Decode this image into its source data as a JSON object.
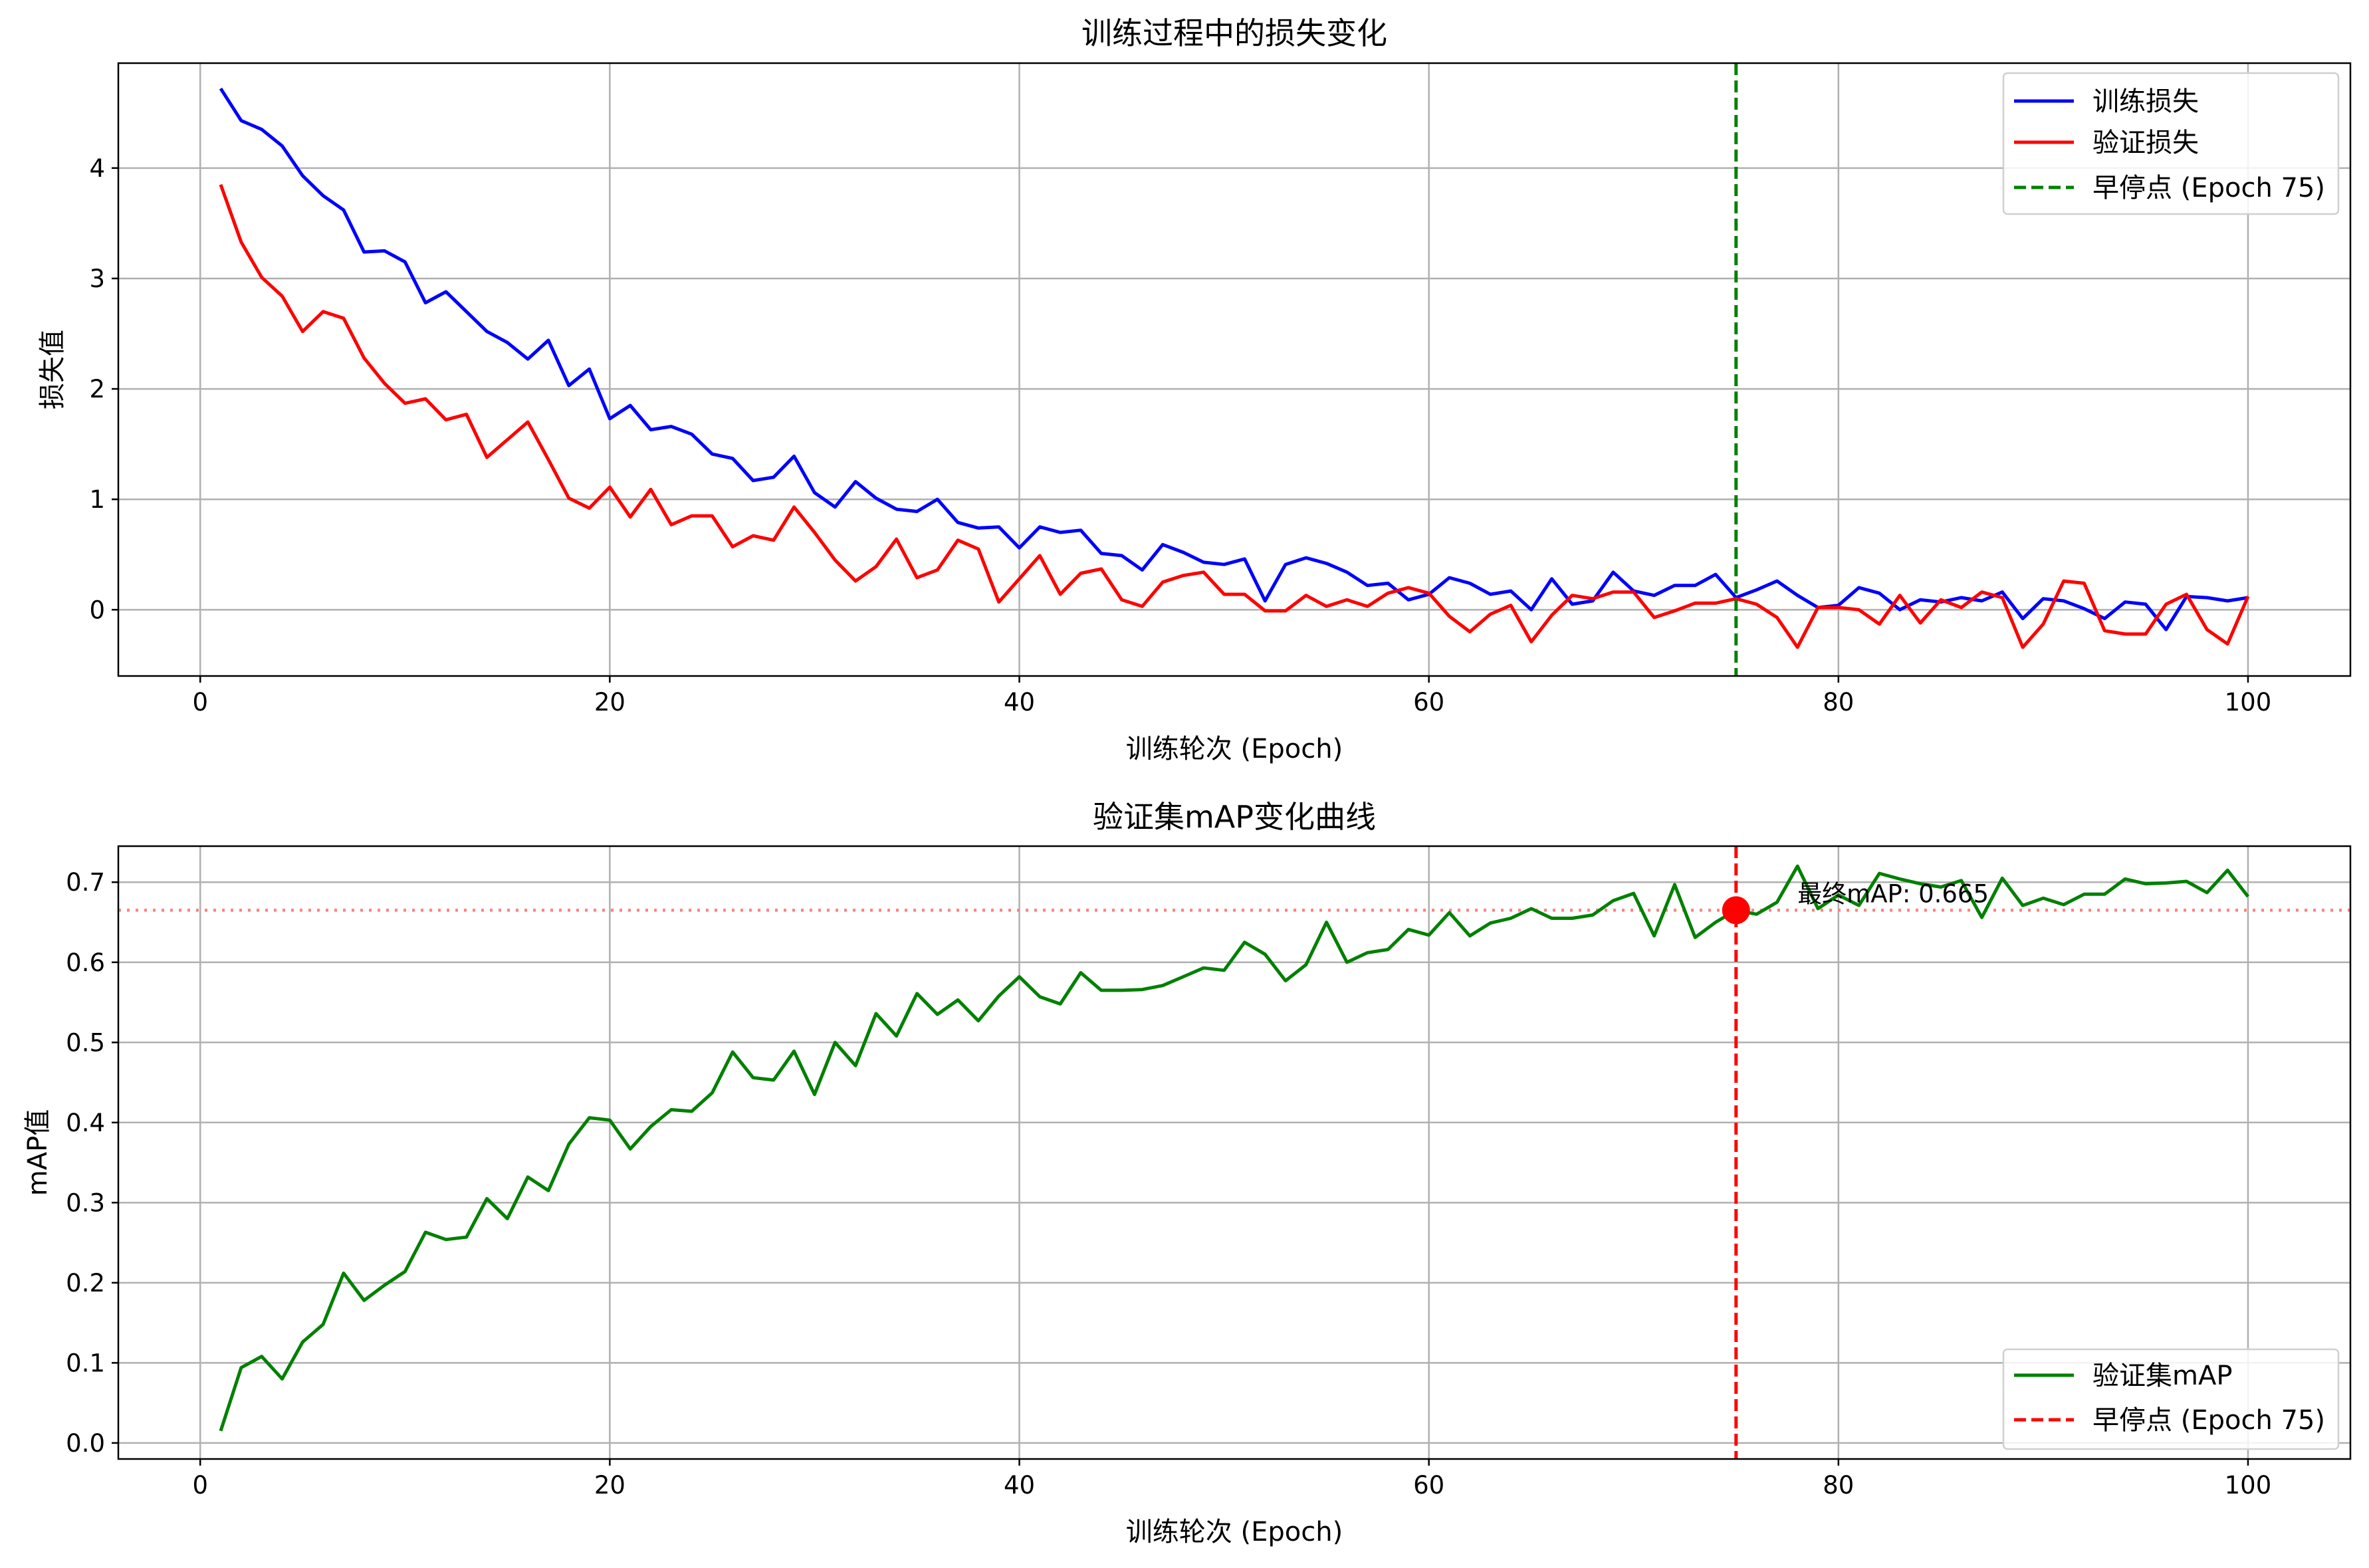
{
  "chart_data": [
    {
      "type": "line",
      "title": "训练过程中的损失变化",
      "xlabel": "训练轮次 (Epoch)",
      "ylabel": "损失值",
      "xlim": [
        -4,
        105
      ],
      "ylim": [
        -0.6,
        4.95
      ],
      "xticks": [
        0,
        20,
        40,
        60,
        80,
        100
      ],
      "yticks": [
        0,
        1,
        2,
        3,
        4
      ],
      "grid": true,
      "legend_position": "top-right",
      "x": [
        1,
        2,
        3,
        4,
        5,
        6,
        7,
        8,
        9,
        10,
        11,
        12,
        13,
        14,
        15,
        16,
        17,
        18,
        19,
        20,
        21,
        22,
        23,
        24,
        25,
        26,
        27,
        28,
        29,
        30,
        31,
        32,
        33,
        34,
        35,
        36,
        37,
        38,
        39,
        40,
        41,
        42,
        43,
        44,
        45,
        46,
        47,
        48,
        49,
        50,
        51,
        52,
        53,
        54,
        55,
        56,
        57,
        58,
        59,
        60,
        61,
        62,
        63,
        64,
        65,
        66,
        67,
        68,
        69,
        70,
        71,
        72,
        73,
        74,
        75,
        76,
        77,
        78,
        79,
        80,
        81,
        82,
        83,
        84,
        85,
        86,
        87,
        88,
        89,
        90,
        91,
        92,
        93,
        94,
        95,
        96,
        97,
        98,
        99,
        100
      ],
      "series": [
        {
          "name": "训练损失",
          "color": "#0000ff",
          "style": "solid",
          "values": [
            4.72,
            4.43,
            4.35,
            4.2,
            3.93,
            3.75,
            3.62,
            3.24,
            3.25,
            3.15,
            2.78,
            2.88,
            2.7,
            2.52,
            2.42,
            2.27,
            2.44,
            2.03,
            2.18,
            1.73,
            1.85,
            1.63,
            1.66,
            1.59,
            1.41,
            1.37,
            1.17,
            1.2,
            1.39,
            1.06,
            0.93,
            1.16,
            1.01,
            0.91,
            0.89,
            1.0,
            0.79,
            0.74,
            0.75,
            0.56,
            0.75,
            0.7,
            0.72,
            0.51,
            0.49,
            0.36,
            0.59,
            0.52,
            0.43,
            0.41,
            0.46,
            0.08,
            0.41,
            0.47,
            0.42,
            0.34,
            0.22,
            0.24,
            0.09,
            0.14,
            0.29,
            0.24,
            0.14,
            0.17,
            0.0,
            0.28,
            0.05,
            0.08,
            0.34,
            0.17,
            0.13,
            0.22,
            0.22,
            0.32,
            0.11,
            0.18,
            0.26,
            0.13,
            0.02,
            0.04,
            0.2,
            0.15,
            0.0,
            0.09,
            0.07,
            0.11,
            0.08,
            0.16,
            -0.08,
            0.1,
            0.08,
            0.01,
            -0.08,
            0.07,
            0.05,
            -0.18,
            0.12,
            0.11,
            0.08,
            0.11
          ]
        },
        {
          "name": "验证损失",
          "color": "#ff0000",
          "style": "solid",
          "values": [
            3.85,
            3.33,
            3.01,
            2.84,
            2.52,
            2.7,
            2.64,
            2.28,
            2.05,
            1.87,
            1.91,
            1.72,
            1.77,
            1.38,
            1.54,
            1.7,
            1.36,
            1.01,
            0.92,
            1.11,
            0.84,
            1.09,
            0.77,
            0.85,
            0.85,
            0.57,
            0.67,
            0.63,
            0.93,
            0.7,
            0.45,
            0.26,
            0.39,
            0.64,
            0.29,
            0.36,
            0.63,
            0.55,
            0.07,
            0.28,
            0.49,
            0.14,
            0.33,
            0.37,
            0.09,
            0.03,
            0.25,
            0.31,
            0.34,
            0.14,
            0.14,
            -0.01,
            -0.01,
            0.13,
            0.03,
            0.09,
            0.03,
            0.15,
            0.2,
            0.15,
            -0.06,
            -0.2,
            -0.04,
            0.04,
            -0.29,
            -0.05,
            0.13,
            0.1,
            0.16,
            0.16,
            -0.07,
            -0.01,
            0.06,
            0.06,
            0.1,
            0.05,
            -0.07,
            -0.34,
            0.02,
            0.02,
            0.0,
            -0.13,
            0.13,
            -0.12,
            0.09,
            0.02,
            0.16,
            0.11,
            -0.34,
            -0.13,
            0.26,
            0.24,
            -0.19,
            -0.22,
            -0.22,
            0.05,
            0.14,
            -0.18,
            -0.31,
            0.12
          ]
        }
      ],
      "vlines": [
        {
          "name": "早停点 (Epoch 75)",
          "x": 75,
          "color": "#008000",
          "style": "dashed"
        }
      ]
    },
    {
      "type": "line",
      "title": "验证集mAP变化曲线",
      "xlabel": "训练轮次 (Epoch)",
      "ylabel": "mAP值",
      "xlim": [
        -4,
        105
      ],
      "ylim": [
        -0.02,
        0.745
      ],
      "xticks": [
        0,
        20,
        40,
        60,
        80,
        100
      ],
      "yticks": [
        0.0,
        0.1,
        0.2,
        0.3,
        0.4,
        0.5,
        0.6,
        0.7
      ],
      "grid": true,
      "legend_position": "bottom-right",
      "x": [
        1,
        2,
        3,
        4,
        5,
        6,
        7,
        8,
        9,
        10,
        11,
        12,
        13,
        14,
        15,
        16,
        17,
        18,
        19,
        20,
        21,
        22,
        23,
        24,
        25,
        26,
        27,
        28,
        29,
        30,
        31,
        32,
        33,
        34,
        35,
        36,
        37,
        38,
        39,
        40,
        41,
        42,
        43,
        44,
        45,
        46,
        47,
        48,
        49,
        50,
        51,
        52,
        53,
        54,
        55,
        56,
        57,
        58,
        59,
        60,
        61,
        62,
        63,
        64,
        65,
        66,
        67,
        68,
        69,
        70,
        71,
        72,
        73,
        74,
        75,
        76,
        77,
        78,
        79,
        80,
        81,
        82,
        83,
        84,
        85,
        86,
        87,
        88,
        89,
        90,
        91,
        92,
        93,
        94,
        95,
        96,
        97,
        98,
        99,
        100
      ],
      "series": [
        {
          "name": "验证集mAP",
          "color": "#008000",
          "style": "solid",
          "values": [
            0.015,
            0.094,
            0.108,
            0.08,
            0.126,
            0.148,
            0.212,
            0.178,
            0.197,
            0.214,
            0.263,
            0.254,
            0.257,
            0.305,
            0.28,
            0.332,
            0.315,
            0.373,
            0.406,
            0.403,
            0.367,
            0.395,
            0.416,
            0.414,
            0.437,
            0.488,
            0.456,
            0.453,
            0.489,
            0.435,
            0.5,
            0.471,
            0.536,
            0.508,
            0.561,
            0.535,
            0.553,
            0.527,
            0.558,
            0.582,
            0.557,
            0.548,
            0.587,
            0.565,
            0.565,
            0.566,
            0.571,
            0.582,
            0.593,
            0.59,
            0.625,
            0.61,
            0.577,
            0.597,
            0.65,
            0.6,
            0.612,
            0.616,
            0.641,
            0.634,
            0.662,
            0.633,
            0.649,
            0.655,
            0.667,
            0.655,
            0.655,
            0.659,
            0.677,
            0.686,
            0.633,
            0.697,
            0.631,
            0.65,
            0.665,
            0.66,
            0.675,
            0.72,
            0.667,
            0.684,
            0.671,
            0.711,
            0.704,
            0.698,
            0.694,
            0.702,
            0.656,
            0.705,
            0.671,
            0.68,
            0.672,
            0.685,
            0.685,
            0.704,
            0.698,
            0.699,
            0.701,
            0.687,
            0.715,
            0.682
          ]
        }
      ],
      "vlines": [
        {
          "name": "早停点 (Epoch 75)",
          "x": 75,
          "color": "#ff0000",
          "style": "dashed"
        }
      ],
      "hlines": [
        {
          "y": 0.665,
          "color": "#ff8080",
          "style": "dotted"
        }
      ],
      "points": [
        {
          "x": 75,
          "y": 0.665,
          "color": "#ff0000"
        }
      ],
      "annotations": [
        {
          "text": "最终mAP: 0.665",
          "x": 78,
          "y": 0.665
        }
      ]
    }
  ]
}
